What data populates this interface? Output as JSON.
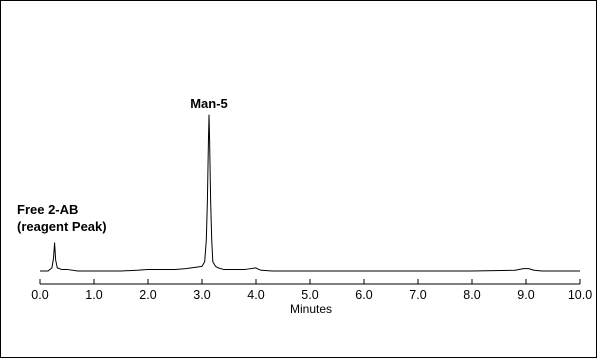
{
  "chart_data": {
    "type": "line",
    "xlabel": "Minutes",
    "ylabel": "",
    "xlim": [
      0.0,
      10.0
    ],
    "ylim": [
      0,
      1.0
    ],
    "x_ticks": [
      "0.0",
      "1.0",
      "2.0",
      "3.0",
      "4.0",
      "5.0",
      "6.0",
      "7.0",
      "8.0",
      "9.0",
      "10.0"
    ],
    "grid": false,
    "annotations": [
      {
        "lines": [
          "Man-5"
        ],
        "x": 3.13,
        "y": 1.0
      },
      {
        "lines": [
          "Free 2-AB",
          "(reagent Peak)"
        ],
        "x": 0.27,
        "y": 0.19
      }
    ],
    "series": [
      {
        "x": [
          0.0,
          0.15,
          0.22,
          0.25,
          0.27,
          0.29,
          0.32,
          0.4,
          0.5,
          0.7,
          1.0,
          1.5,
          1.8,
          2.0,
          2.2,
          2.5,
          2.7,
          2.8,
          2.9,
          3.0,
          3.05,
          3.08,
          3.1,
          3.12,
          3.13,
          3.14,
          3.16,
          3.18,
          3.2,
          3.25,
          3.3,
          3.4,
          3.6,
          3.8,
          4.0,
          4.05,
          4.1,
          4.3,
          4.6,
          5.0,
          6.0,
          7.0,
          8.0,
          8.8,
          8.95,
          9.05,
          9.15,
          9.3,
          9.6,
          10.0
        ],
        "y": [
          0.0,
          0.0,
          0.02,
          0.08,
          0.18,
          0.07,
          0.02,
          0.01,
          0.01,
          0.0,
          0.0,
          0.0,
          0.005,
          0.01,
          0.01,
          0.01,
          0.015,
          0.02,
          0.025,
          0.03,
          0.06,
          0.2,
          0.45,
          0.85,
          1.0,
          0.85,
          0.45,
          0.2,
          0.06,
          0.03,
          0.02,
          0.01,
          0.01,
          0.01,
          0.02,
          0.01,
          0.005,
          0.0,
          0.0,
          0.0,
          0.0,
          0.0,
          0.0,
          0.005,
          0.015,
          0.015,
          0.005,
          0.0,
          0.0,
          0.0
        ]
      }
    ]
  }
}
